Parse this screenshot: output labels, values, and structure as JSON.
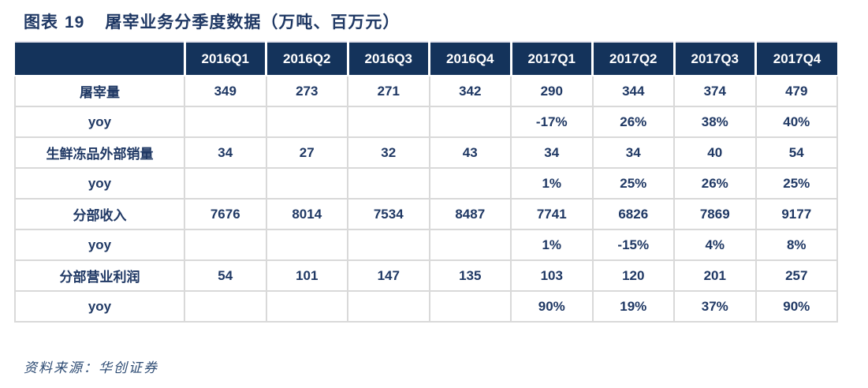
{
  "page": {
    "figure_label": "图表",
    "figure_number": "19",
    "title_text": "屠宰业务分季度数据（万吨、百万元）",
    "source_note": "资料来源：华创证券"
  },
  "chart_data": {
    "type": "table",
    "title": "图表 19 屠宰业务分季度数据（万吨、百万元）",
    "columns": [
      "",
      "2016Q1",
      "2016Q2",
      "2016Q3",
      "2016Q4",
      "2017Q1",
      "2017Q2",
      "2017Q3",
      "2017Q4"
    ],
    "rows": [
      {
        "label": "屠宰量",
        "values": [
          "349",
          "273",
          "271",
          "342",
          "290",
          "344",
          "374",
          "479"
        ]
      },
      {
        "label": "yoy",
        "values": [
          "",
          "",
          "",
          "",
          "-17%",
          "26%",
          "38%",
          "40%"
        ]
      },
      {
        "label": "生鲜冻品外部销量",
        "values": [
          "34",
          "27",
          "32",
          "43",
          "34",
          "34",
          "40",
          "54"
        ]
      },
      {
        "label": "yoy",
        "values": [
          "",
          "",
          "",
          "",
          "1%",
          "25%",
          "26%",
          "25%"
        ]
      },
      {
        "label": "分部收入",
        "values": [
          "7676",
          "8014",
          "7534",
          "8487",
          "7741",
          "6826",
          "7869",
          "9177"
        ]
      },
      {
        "label": "yoy",
        "values": [
          "",
          "",
          "",
          "",
          "1%",
          "-15%",
          "4%",
          "8%"
        ]
      },
      {
        "label": "分部营业利润",
        "values": [
          "54",
          "101",
          "147",
          "135",
          "103",
          "120",
          "201",
          "257"
        ]
      },
      {
        "label": "yoy",
        "values": [
          "",
          "",
          "",
          "",
          "90%",
          "19%",
          "37%",
          "90%"
        ]
      }
    ]
  },
  "colors": {
    "header_bg": "#14335B",
    "text": "#1F3864",
    "border": "#D9D9D9",
    "source_text": "#2E4C74"
  }
}
